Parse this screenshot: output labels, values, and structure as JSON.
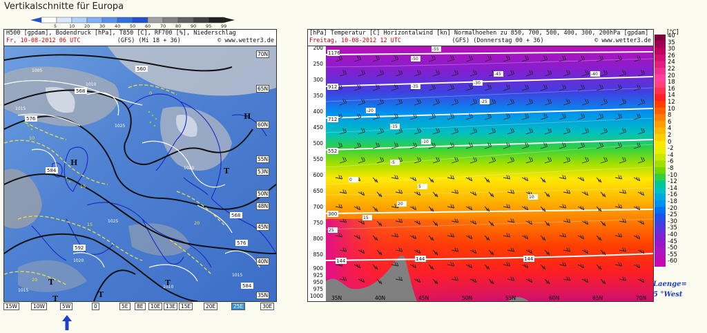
{
  "page_title": "Vertikalschnitte für Europa",
  "rh_legend": [
    "5",
    "10",
    "20",
    "30",
    "40",
    "50",
    "60",
    "70",
    "80",
    "90",
    "95",
    "99"
  ],
  "map": {
    "header_line1": "H500 [gpdam], Bodendruck [hPa], T850 [C], RF700 [%], Niederschlag",
    "header_line2_left": "Fr, 10-08-2012  06 UTC",
    "header_line2_mid": "(GFS)   (Mi 18 + 36)",
    "header_line2_right": "© www.wetter3.de",
    "lat_labels": [
      "70N",
      "65N",
      "60N",
      "55N",
      "53N",
      "50N",
      "48N",
      "45N",
      "40N",
      "35N"
    ],
    "lon_labels": [
      "15W",
      "10W",
      "5W",
      "0",
      "5E",
      "8E",
      "10E",
      "13E",
      "15E",
      "20E",
      "25E",
      "30E"
    ],
    "active_lon": "5W",
    "contour_labels": [
      "560",
      "568",
      "576",
      "584",
      "592",
      "568",
      "576",
      "584"
    ],
    "pressure_labels": [
      "1005",
      "1010",
      "1015",
      "1020",
      "1025",
      "1020",
      "1015",
      "1010",
      "1015",
      "1025"
    ],
    "temp_labels": [
      "-5",
      "0",
      "10",
      "15",
      "20",
      "15",
      "20",
      "10"
    ],
    "highs_lows": [
      "H",
      "H",
      "T",
      "T",
      "T",
      "T",
      "T"
    ]
  },
  "section": {
    "header_line1": "Temperatur [C] Horizontalwind [kn] Normalhoehen zu 850, 700, 500, 400, 300, 200hPa [gpdam]",
    "header_line2_left": "Freitag, 10-08-2012  12 UTC",
    "header_line2_mid": "(GFS)   (Donnerstag 00 + 36)",
    "header_line2_right": "© www.wetter3.de",
    "hpa_unit": "[hPa]",
    "pressure_levels": [
      "200",
      "250",
      "300",
      "350",
      "400",
      "450",
      "500",
      "550",
      "600",
      "650",
      "700",
      "750",
      "800",
      "850",
      "900",
      "925",
      "950",
      "975",
      "1000"
    ],
    "lat_axis": [
      "35N",
      "40N",
      "45N",
      "50N",
      "55N",
      "60N",
      "65N",
      "70N"
    ],
    "height_labels": [
      "1176",
      "912",
      "712",
      "552",
      "300",
      "144",
      "144",
      "144"
    ],
    "isotherm_labels": [
      "-55",
      "-50",
      "-45",
      "-40",
      "-35",
      "-30",
      "-25",
      "-20",
      "-15",
      "-10",
      "-5",
      "0",
      "5",
      "10",
      "15",
      "20",
      "25"
    ],
    "colorbar_unit": "[°C]",
    "colorbar_labels": [
      "40",
      "35",
      "30",
      "26",
      "24",
      "22",
      "20",
      "18",
      "16",
      "14",
      "12",
      "10",
      "8",
      "6",
      "4",
      "2",
      "0",
      "-2",
      "-4",
      "-6",
      "-8",
      "-10",
      "-12",
      "-14",
      "-16",
      "-18",
      "-20",
      "-25",
      "-30",
      "-35",
      "-40",
      "-45",
      "-50",
      "-55",
      "-60"
    ],
    "colorbar_colors": [
      "#800040",
      "#a00050",
      "#c00060",
      "#d01070",
      "#e02080",
      "#f03090",
      "#ff40a0",
      "#ff4080",
      "#ff3050",
      "#ff2020",
      "#ff4000",
      "#ff6000",
      "#ff8000",
      "#ff9c00",
      "#ffb800",
      "#ffd000",
      "#ffe800",
      "#e8f000",
      "#c8e800",
      "#a0e000",
      "#70d800",
      "#30d040",
      "#00c890",
      "#00c0c0",
      "#00a8e0",
      "#0090f0",
      "#0070f0",
      "#2050e8",
      "#4040e0",
      "#6030d8",
      "#8020d0",
      "#9818c8",
      "#a818c0",
      "#b810b8",
      "#c808b0"
    ],
    "laenge_line1": "Laenge=",
    "laenge_line2": "5 °West"
  }
}
